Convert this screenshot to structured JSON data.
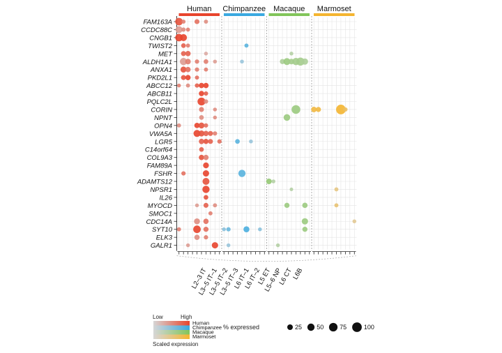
{
  "chart_data": {
    "type": "scatter",
    "species": [
      {
        "name": "Human",
        "color": "#e8442c"
      },
      {
        "name": "Chimpanzee",
        "color": "#3aa9e0"
      },
      {
        "name": "Macaque",
        "color": "#82c55a"
      },
      {
        "name": "Marmoset",
        "color": "#f4b530"
      }
    ],
    "x_tick_labels": [
      "L2–3 IT",
      "L3–5 IT–1",
      "L3–5 IT–2",
      "L3–5 IT–3",
      "L6 IT–1",
      "L6 IT–2",
      "L5 ET",
      "L5–6 NP",
      "L6 CT",
      "L6B"
    ],
    "cell_types_per_species": 10,
    "genes": [
      "FAM163A",
      "CCDC88C",
      "CNGB1",
      "TWIST2",
      "MET",
      "ALDH1A1",
      "ANXA1",
      "PKD2L1",
      "ABCC12",
      "ABCB11",
      "PQLC2L",
      "CORIN",
      "NPNT",
      "OPN4",
      "VWA5A",
      "LGR5",
      "C14orf64",
      "COL9A3",
      "FAM89A",
      "FSHR",
      "ADAMTS12",
      "NPSR1",
      "IL26",
      "MYOCD",
      "SMOC1",
      "CDC14A",
      "SYT10",
      "ELK3",
      "GALR1"
    ],
    "points": [
      {
        "gene": "FAM163A",
        "species": "Human",
        "cell": 1,
        "pct": 55,
        "expr": 0.9
      },
      {
        "gene": "FAM163A",
        "species": "Human",
        "cell": 2,
        "pct": 10,
        "expr": 0.6
      },
      {
        "gene": "FAM163A",
        "species": "Human",
        "cell": 5,
        "pct": 18,
        "expr": 0.7
      },
      {
        "gene": "FAM163A",
        "species": "Human",
        "cell": 7,
        "pct": 10,
        "expr": 0.5
      },
      {
        "gene": "CCDC88C",
        "species": "Human",
        "cell": 1,
        "pct": 45,
        "expr": 0.4
      },
      {
        "gene": "CCDC88C",
        "species": "Human",
        "cell": 2,
        "pct": 12,
        "expr": 0.5
      },
      {
        "gene": "CCDC88C",
        "species": "Human",
        "cell": 3,
        "pct": 10,
        "expr": 0.6
      },
      {
        "gene": "CNGB1",
        "species": "Human",
        "cell": 1,
        "pct": 55,
        "expr": 1.0
      },
      {
        "gene": "CNGB1",
        "species": "Human",
        "cell": 2,
        "pct": 45,
        "expr": 1.0
      },
      {
        "gene": "TWIST2",
        "species": "Human",
        "cell": 2,
        "pct": 15,
        "expr": 0.8
      },
      {
        "gene": "TWIST2",
        "species": "Human",
        "cell": 3,
        "pct": 10,
        "expr": 0.6
      },
      {
        "gene": "TWIST2",
        "species": "Chimpanzee",
        "cell": 6,
        "pct": 10,
        "expr": 0.8
      },
      {
        "gene": "MET",
        "species": "Human",
        "cell": 2,
        "pct": 18,
        "expr": 0.8
      },
      {
        "gene": "MET",
        "species": "Human",
        "cell": 3,
        "pct": 22,
        "expr": 0.8
      },
      {
        "gene": "MET",
        "species": "Human",
        "cell": 7,
        "pct": 8,
        "expr": 0.3
      },
      {
        "gene": "MET",
        "species": "Macaque",
        "cell": 6,
        "pct": 8,
        "expr": 0.4
      },
      {
        "gene": "ALDH1A1",
        "species": "Human",
        "cell": 2,
        "pct": 50,
        "expr": 0.4
      },
      {
        "gene": "ALDH1A1",
        "species": "Human",
        "cell": 3,
        "pct": 25,
        "expr": 0.6
      },
      {
        "gene": "ALDH1A1",
        "species": "Human",
        "cell": 5,
        "pct": 12,
        "expr": 0.6
      },
      {
        "gene": "ALDH1A1",
        "species": "Human",
        "cell": 7,
        "pct": 15,
        "expr": 0.6
      },
      {
        "gene": "ALDH1A1",
        "species": "Human",
        "cell": 9,
        "pct": 8,
        "expr": 0.4
      },
      {
        "gene": "ALDH1A1",
        "species": "Chimpanzee",
        "cell": 5,
        "pct": 8,
        "expr": 0.4
      },
      {
        "gene": "ALDH1A1",
        "species": "Macaque",
        "cell": 4,
        "pct": 20,
        "expr": 0.5
      },
      {
        "gene": "ALDH1A1",
        "species": "Macaque",
        "cell": 5,
        "pct": 45,
        "expr": 0.7
      },
      {
        "gene": "ALDH1A1",
        "species": "Macaque",
        "cell": 6,
        "pct": 25,
        "expr": 0.6
      },
      {
        "gene": "ALDH1A1",
        "species": "Macaque",
        "cell": 7,
        "pct": 50,
        "expr": 0.6
      },
      {
        "gene": "ALDH1A1",
        "species": "Macaque",
        "cell": 8,
        "pct": 65,
        "expr": 0.6
      },
      {
        "gene": "ALDH1A1",
        "species": "Macaque",
        "cell": 9,
        "pct": 35,
        "expr": 0.5
      },
      {
        "gene": "ANXA1",
        "species": "Human",
        "cell": 2,
        "pct": 30,
        "expr": 0.9
      },
      {
        "gene": "ANXA1",
        "species": "Human",
        "cell": 3,
        "pct": 22,
        "expr": 0.7
      },
      {
        "gene": "ANXA1",
        "species": "Human",
        "cell": 5,
        "pct": 12,
        "expr": 0.6
      },
      {
        "gene": "ANXA1",
        "species": "Human",
        "cell": 7,
        "pct": 10,
        "expr": 0.6
      },
      {
        "gene": "PKD2L1",
        "species": "Human",
        "cell": 2,
        "pct": 18,
        "expr": 0.9
      },
      {
        "gene": "PKD2L1",
        "species": "Human",
        "cell": 3,
        "pct": 22,
        "expr": 1.0
      },
      {
        "gene": "PKD2L1",
        "species": "Human",
        "cell": 5,
        "pct": 10,
        "expr": 0.7
      },
      {
        "gene": "ABCC12",
        "species": "Human",
        "cell": 1,
        "pct": 8,
        "expr": 0.6
      },
      {
        "gene": "ABCC12",
        "species": "Human",
        "cell": 3,
        "pct": 10,
        "expr": 0.5
      },
      {
        "gene": "ABCC12",
        "species": "Human",
        "cell": 5,
        "pct": 12,
        "expr": 0.8
      },
      {
        "gene": "ABCC12",
        "species": "Human",
        "cell": 6,
        "pct": 22,
        "expr": 1.0
      },
      {
        "gene": "ABCC12",
        "species": "Human",
        "cell": 7,
        "pct": 22,
        "expr": 1.0
      },
      {
        "gene": "ABCB11",
        "species": "Human",
        "cell": 6,
        "pct": 22,
        "expr": 1.0
      },
      {
        "gene": "ABCB11",
        "species": "Human",
        "cell": 7,
        "pct": 12,
        "expr": 0.8
      },
      {
        "gene": "PQLC2L",
        "species": "Human",
        "cell": 6,
        "pct": 62,
        "expr": 1.0
      },
      {
        "gene": "PQLC2L",
        "species": "Human",
        "cell": 7,
        "pct": 12,
        "expr": 0.5
      },
      {
        "gene": "CORIN",
        "species": "Human",
        "cell": 6,
        "pct": 18,
        "expr": 0.6
      },
      {
        "gene": "CORIN",
        "species": "Human",
        "cell": 9,
        "pct": 8,
        "expr": 0.5
      },
      {
        "gene": "CORIN",
        "species": "Macaque",
        "cell": 7,
        "pct": 78,
        "expr": 0.7
      },
      {
        "gene": "CORIN",
        "species": "Marmoset",
        "cell": 1,
        "pct": 25,
        "expr": 0.9
      },
      {
        "gene": "CORIN",
        "species": "Marmoset",
        "cell": 2,
        "pct": 20,
        "expr": 0.9
      },
      {
        "gene": "CORIN",
        "species": "Marmoset",
        "cell": 7,
        "pct": 100,
        "expr": 1.0
      },
      {
        "gene": "CORIN",
        "species": "Marmoset",
        "cell": 8,
        "pct": 12,
        "expr": 0.7
      },
      {
        "gene": "NPNT",
        "species": "Human",
        "cell": 6,
        "pct": 15,
        "expr": 0.5
      },
      {
        "gene": "NPNT",
        "species": "Human",
        "cell": 9,
        "pct": 8,
        "expr": 0.5
      },
      {
        "gene": "NPNT",
        "species": "Macaque",
        "cell": 5,
        "pct": 40,
        "expr": 0.7
      },
      {
        "gene": "OPN4",
        "species": "Human",
        "cell": 1,
        "pct": 10,
        "expr": 0.5
      },
      {
        "gene": "OPN4",
        "species": "Human",
        "cell": 5,
        "pct": 22,
        "expr": 1.0
      },
      {
        "gene": "OPN4",
        "species": "Human",
        "cell": 6,
        "pct": 30,
        "expr": 0.9
      },
      {
        "gene": "OPN4",
        "species": "Human",
        "cell": 7,
        "pct": 12,
        "expr": 0.7
      },
      {
        "gene": "VWA5A",
        "species": "Human",
        "cell": 5,
        "pct": 45,
        "expr": 1.0
      },
      {
        "gene": "VWA5A",
        "species": "Human",
        "cell": 6,
        "pct": 30,
        "expr": 0.9
      },
      {
        "gene": "VWA5A",
        "species": "Human",
        "cell": 7,
        "pct": 22,
        "expr": 0.8
      },
      {
        "gene": "VWA5A",
        "species": "Human",
        "cell": 8,
        "pct": 18,
        "expr": 0.8
      },
      {
        "gene": "VWA5A",
        "species": "Human",
        "cell": 9,
        "pct": 12,
        "expr": 0.6
      },
      {
        "gene": "LGR5",
        "species": "Human",
        "cell": 6,
        "pct": 22,
        "expr": 0.8
      },
      {
        "gene": "LGR5",
        "species": "Human",
        "cell": 7,
        "pct": 20,
        "expr": 0.9
      },
      {
        "gene": "LGR5",
        "species": "Human",
        "cell": 8,
        "pct": 18,
        "expr": 0.8
      },
      {
        "gene": "LGR5",
        "species": "Human",
        "cell": 10,
        "pct": 12,
        "expr": 0.7
      },
      {
        "gene": "LGR5",
        "species": "Chimpanzee",
        "cell": 4,
        "pct": 15,
        "expr": 0.8
      },
      {
        "gene": "LGR5",
        "species": "Chimpanzee",
        "cell": 7,
        "pct": 8,
        "expr": 0.4
      },
      {
        "gene": "C14orf64",
        "species": "Human",
        "cell": 6,
        "pct": 15,
        "expr": 0.8
      },
      {
        "gene": "COL9A3",
        "species": "Human",
        "cell": 6,
        "pct": 22,
        "expr": 0.9
      },
      {
        "gene": "COL9A3",
        "species": "Human",
        "cell": 7,
        "pct": 22,
        "expr": 0.6
      },
      {
        "gene": "FAM89A",
        "species": "Human",
        "cell": 7,
        "pct": 28,
        "expr": 1.0
      },
      {
        "gene": "FSHR",
        "species": "Human",
        "cell": 2,
        "pct": 12,
        "expr": 0.7
      },
      {
        "gene": "FSHR",
        "species": "Human",
        "cell": 7,
        "pct": 35,
        "expr": 1.0
      },
      {
        "gene": "FSHR",
        "species": "Chimpanzee",
        "cell": 5,
        "pct": 50,
        "expr": 0.8
      },
      {
        "gene": "ADAMTS12",
        "species": "Human",
        "cell": 7,
        "pct": 45,
        "expr": 0.9
      },
      {
        "gene": "ADAMTS12",
        "species": "Macaque",
        "cell": 1,
        "pct": 25,
        "expr": 0.8
      },
      {
        "gene": "ADAMTS12",
        "species": "Macaque",
        "cell": 2,
        "pct": 8,
        "expr": 0.4
      },
      {
        "gene": "NPSR1",
        "species": "Human",
        "cell": 7,
        "pct": 50,
        "expr": 1.0
      },
      {
        "gene": "NPSR1",
        "species": "Macaque",
        "cell": 6,
        "pct": 6,
        "expr": 0.4
      },
      {
        "gene": "NPSR1",
        "species": "Marmoset",
        "cell": 6,
        "pct": 10,
        "expr": 0.5
      },
      {
        "gene": "IL26",
        "species": "Human",
        "cell": 7,
        "pct": 15,
        "expr": 0.9
      },
      {
        "gene": "MYOCD",
        "species": "Human",
        "cell": 5,
        "pct": 8,
        "expr": 0.4
      },
      {
        "gene": "MYOCD",
        "species": "Human",
        "cell": 7,
        "pct": 18,
        "expr": 0.8
      },
      {
        "gene": "MYOCD",
        "species": "Human",
        "cell": 9,
        "pct": 10,
        "expr": 0.5
      },
      {
        "gene": "MYOCD",
        "species": "Macaque",
        "cell": 5,
        "pct": 20,
        "expr": 0.7
      },
      {
        "gene": "MYOCD",
        "species": "Macaque",
        "cell": 9,
        "pct": 22,
        "expr": 0.7
      },
      {
        "gene": "MYOCD",
        "species": "Marmoset",
        "cell": 6,
        "pct": 10,
        "expr": 0.6
      },
      {
        "gene": "SMOC1",
        "species": "Human",
        "cell": 8,
        "pct": 10,
        "expr": 0.6
      },
      {
        "gene": "CDC14A",
        "species": "Human",
        "cell": 5,
        "pct": 30,
        "expr": 0.5
      },
      {
        "gene": "CDC14A",
        "species": "Human",
        "cell": 7,
        "pct": 22,
        "expr": 0.7
      },
      {
        "gene": "CDC14A",
        "species": "Macaque",
        "cell": 9,
        "pct": 35,
        "expr": 0.7
      },
      {
        "gene": "CDC14A",
        "species": "Marmoset",
        "cell": 10,
        "pct": 8,
        "expr": 0.4
      },
      {
        "gene": "SYT10",
        "species": "Human",
        "cell": 1,
        "pct": 10,
        "expr": 0.6
      },
      {
        "gene": "SYT10",
        "species": "Human",
        "cell": 5,
        "pct": 55,
        "expr": 1.0
      },
      {
        "gene": "SYT10",
        "species": "Human",
        "cell": 7,
        "pct": 20,
        "expr": 0.7
      },
      {
        "gene": "SYT10",
        "species": "Chimpanzee",
        "cell": 1,
        "pct": 8,
        "expr": 0.5
      },
      {
        "gene": "SYT10",
        "species": "Chimpanzee",
        "cell": 2,
        "pct": 12,
        "expr": 0.7
      },
      {
        "gene": "SYT10",
        "species": "Chimpanzee",
        "cell": 6,
        "pct": 30,
        "expr": 0.9
      },
      {
        "gene": "SYT10",
        "species": "Chimpanzee",
        "cell": 9,
        "pct": 8,
        "expr": 0.5
      },
      {
        "gene": "SYT10",
        "species": "Macaque",
        "cell": 9,
        "pct": 20,
        "expr": 0.7
      },
      {
        "gene": "ELK3",
        "species": "Human",
        "cell": 5,
        "pct": 22,
        "expr": 0.5
      },
      {
        "gene": "ELK3",
        "species": "Human",
        "cell": 7,
        "pct": 12,
        "expr": 0.6
      },
      {
        "gene": "GALR1",
        "species": "Human",
        "cell": 3,
        "pct": 8,
        "expr": 0.4
      },
      {
        "gene": "GALR1",
        "species": "Human",
        "cell": 9,
        "pct": 35,
        "expr": 1.0
      },
      {
        "gene": "GALR1",
        "species": "Chimpanzee",
        "cell": 2,
        "pct": 8,
        "expr": 0.4
      },
      {
        "gene": "GALR1",
        "species": "Macaque",
        "cell": 3,
        "pct": 8,
        "expr": 0.4
      }
    ],
    "legend": {
      "color_low_label": "Low",
      "color_high_label": "High",
      "color_title": "Scaled expression",
      "size_title": "% expressed",
      "size_values": [
        25,
        50,
        75,
        100
      ]
    }
  }
}
